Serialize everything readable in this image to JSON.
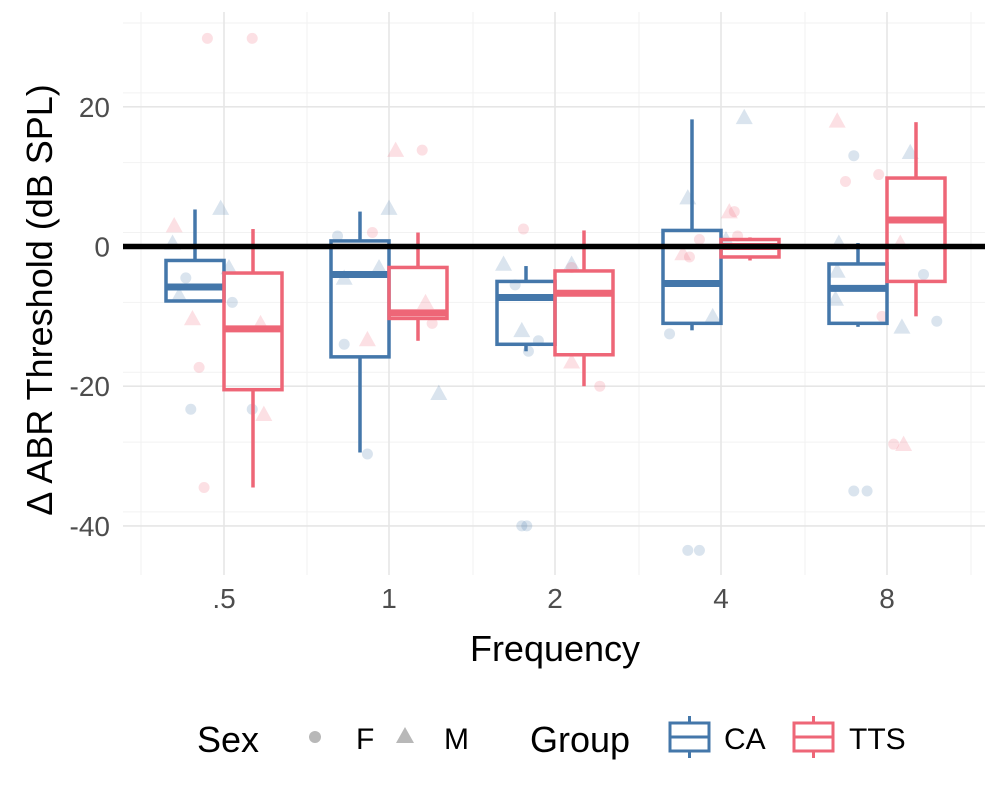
{
  "chart_data": {
    "type": "boxplot",
    "xlabel": "Frequency",
    "ylabel": "Δ ABR Threshold (dB SPL)",
    "categories": [
      ".5",
      "1",
      "2",
      "4",
      "8"
    ],
    "ylim": [
      -48,
      33
    ],
    "yticks": [
      -40,
      -20,
      0,
      20
    ],
    "ytick_labels": [
      "-40",
      "-20",
      "0",
      "20"
    ],
    "grid": true,
    "reference_line": 0,
    "legend": {
      "placement": "bottom",
      "sex_title": "Sex",
      "sex_items": [
        {
          "label": "F",
          "shape": "circle"
        },
        {
          "label": "M",
          "shape": "triangle"
        }
      ],
      "group_title": "Group",
      "group_items": [
        {
          "label": "CA",
          "color": "#4477AA"
        },
        {
          "label": "TTS",
          "color": "#EE6677"
        }
      ]
    },
    "colors": {
      "CA": "#4477AA",
      "TTS": "#EE6677"
    },
    "series": [
      {
        "name": "CA",
        "color": "#4477AA",
        "boxes": [
          {
            "category": ".5",
            "whisker_low": -8,
            "q1": -7.8,
            "median": -5.8,
            "q3": -2,
            "whisker_high": 5.3
          },
          {
            "category": "1",
            "whisker_low": -29.5,
            "q1": -15.8,
            "median": -4,
            "q3": 0.8,
            "whisker_high": 5
          },
          {
            "category": "2",
            "whisker_low": -15,
            "q1": -14,
            "median": -7.3,
            "q3": -5,
            "whisker_high": -2.8
          },
          {
            "category": "4",
            "whisker_low": -12,
            "q1": -11,
            "median": -5.3,
            "q3": 2.3,
            "whisker_high": 18.2
          },
          {
            "category": "8",
            "whisker_low": -11.5,
            "q1": -11,
            "median": -6,
            "q3": -2.5,
            "whisker_high": 0.5
          }
        ],
        "points": [
          {
            "category": ".5",
            "x_offset": -0.31,
            "y": 0.5,
            "sex": "M"
          },
          {
            "category": ".5",
            "x_offset": -0.23,
            "y": -4.5,
            "sex": "F"
          },
          {
            "category": ".5",
            "x_offset": -0.27,
            "y": -7,
            "sex": "M"
          },
          {
            "category": ".5",
            "x_offset": -0.2,
            "y": -23.3,
            "sex": "F"
          },
          {
            "category": ".5",
            "x_offset": -0.02,
            "y": 5.5,
            "sex": "M"
          },
          {
            "category": ".5",
            "x_offset": 0.03,
            "y": -3,
            "sex": "M"
          },
          {
            "category": ".5",
            "x_offset": 0.05,
            "y": -8,
            "sex": "F"
          },
          {
            "category": ".5",
            "x_offset": 0.17,
            "y": -23.3,
            "sex": "F"
          },
          {
            "category": "1",
            "x_offset": -0.31,
            "y": 1.5,
            "sex": "F"
          },
          {
            "category": "1",
            "x_offset": -0.27,
            "y": -4.5,
            "sex": "M"
          },
          {
            "category": "1",
            "x_offset": -0.27,
            "y": -14,
            "sex": "F"
          },
          {
            "category": "1",
            "x_offset": -0.13,
            "y": -29.7,
            "sex": "F"
          },
          {
            "category": "1",
            "x_offset": -0.06,
            "y": -3,
            "sex": "M"
          },
          {
            "category": "1",
            "x_offset": 0.0,
            "y": 5.5,
            "sex": "M"
          },
          {
            "category": "1",
            "x_offset": 0.3,
            "y": -21,
            "sex": "M"
          },
          {
            "category": "2",
            "x_offset": -0.31,
            "y": -2.5,
            "sex": "M"
          },
          {
            "category": "2",
            "x_offset": -0.24,
            "y": -5.5,
            "sex": "F"
          },
          {
            "category": "2",
            "x_offset": -0.2,
            "y": -12,
            "sex": "M"
          },
          {
            "category": "2",
            "x_offset": -0.16,
            "y": -15,
            "sex": "F"
          },
          {
            "category": "2",
            "x_offset": -0.2,
            "y": -40,
            "sex": "F"
          },
          {
            "category": "2",
            "x_offset": -0.17,
            "y": -40,
            "sex": "F"
          },
          {
            "category": "2",
            "x_offset": -0.1,
            "y": -13.5,
            "sex": "F"
          },
          {
            "category": "2",
            "x_offset": 0.1,
            "y": -2.5,
            "sex": "M"
          },
          {
            "category": "4",
            "x_offset": -0.31,
            "y": -12.5,
            "sex": "F"
          },
          {
            "category": "4",
            "x_offset": -0.2,
            "y": 7,
            "sex": "M"
          },
          {
            "category": "4",
            "x_offset": -0.2,
            "y": -43.5,
            "sex": "F"
          },
          {
            "category": "4",
            "x_offset": -0.13,
            "y": -43.5,
            "sex": "F"
          },
          {
            "category": "4",
            "x_offset": -0.05,
            "y": -10,
            "sex": "M"
          },
          {
            "category": "4",
            "x_offset": 0.03,
            "y": 1,
            "sex": "M"
          },
          {
            "category": "4",
            "x_offset": 0.14,
            "y": 18.5,
            "sex": "M"
          },
          {
            "category": "8",
            "x_offset": -0.3,
            "y": -3.5,
            "sex": "M"
          },
          {
            "category": "8",
            "x_offset": -0.31,
            "y": -7.5,
            "sex": "M"
          },
          {
            "category": "8",
            "x_offset": -0.2,
            "y": 13,
            "sex": "F"
          },
          {
            "category": "8",
            "x_offset": -0.2,
            "y": -35,
            "sex": "F"
          },
          {
            "category": "8",
            "x_offset": -0.12,
            "y": -35,
            "sex": "F"
          },
          {
            "category": "8",
            "x_offset": -0.29,
            "y": 0.5,
            "sex": "M"
          },
          {
            "category": "8",
            "x_offset": 0.09,
            "y": -11.5,
            "sex": "M"
          },
          {
            "category": "8",
            "x_offset": 0.14,
            "y": 13.5,
            "sex": "M"
          },
          {
            "category": "8",
            "x_offset": 0.22,
            "y": -4,
            "sex": "F"
          },
          {
            "category": "8",
            "x_offset": 0.3,
            "y": -10.7,
            "sex": "F"
          }
        ]
      },
      {
        "name": "TTS",
        "color": "#EE6677",
        "boxes": [
          {
            "category": ".5",
            "whisker_low": -34.5,
            "q1": -20.5,
            "median": -11.8,
            "q3": -3.8,
            "whisker_high": 2.5
          },
          {
            "category": "1",
            "whisker_low": -13.5,
            "q1": -10.3,
            "median": -9.5,
            "q3": -3,
            "whisker_high": 2
          },
          {
            "category": "2",
            "whisker_low": -20,
            "q1": -15.5,
            "median": -6.7,
            "q3": -3.5,
            "whisker_high": 2.3
          },
          {
            "category": "4",
            "whisker_low": -2,
            "q1": -1.5,
            "median": 0,
            "q3": 1,
            "whisker_high": 1.3
          },
          {
            "category": "8",
            "whisker_low": -10,
            "q1": -5,
            "median": 3.8,
            "q3": 9.8,
            "whisker_high": 17.8
          }
        ],
        "points": [
          {
            "category": ".5",
            "x_offset": -0.3,
            "y": 3,
            "sex": "M"
          },
          {
            "category": ".5",
            "x_offset": -0.19,
            "y": -10.3,
            "sex": "M"
          },
          {
            "category": ".5",
            "x_offset": -0.15,
            "y": -17.3,
            "sex": "F"
          },
          {
            "category": ".5",
            "x_offset": -0.12,
            "y": -34.5,
            "sex": "F"
          },
          {
            "category": ".5",
            "x_offset": -0.1,
            "y": 29.8,
            "sex": "F"
          },
          {
            "category": ".5",
            "x_offset": 0.17,
            "y": 29.8,
            "sex": "F"
          },
          {
            "category": ".5",
            "x_offset": 0.22,
            "y": -11,
            "sex": "M"
          },
          {
            "category": ".5",
            "x_offset": 0.24,
            "y": -24,
            "sex": "M"
          },
          {
            "category": "1",
            "x_offset": -0.13,
            "y": -13.3,
            "sex": "M"
          },
          {
            "category": "1",
            "x_offset": -0.1,
            "y": 2,
            "sex": "F"
          },
          {
            "category": "1",
            "x_offset": 0.04,
            "y": 13.8,
            "sex": "M"
          },
          {
            "category": "1",
            "x_offset": 0.22,
            "y": -8,
            "sex": "M"
          },
          {
            "category": "1",
            "x_offset": 0.2,
            "y": 13.8,
            "sex": "F"
          },
          {
            "category": "1",
            "x_offset": 0.26,
            "y": -11,
            "sex": "F"
          },
          {
            "category": "2",
            "x_offset": -0.19,
            "y": 2.5,
            "sex": "F"
          },
          {
            "category": "2",
            "x_offset": 0.1,
            "y": -16.5,
            "sex": "M"
          },
          {
            "category": "2",
            "x_offset": 0.1,
            "y": -3,
            "sex": "F"
          },
          {
            "category": "2",
            "x_offset": 0.27,
            "y": -20,
            "sex": "F"
          },
          {
            "category": "4",
            "x_offset": -0.23,
            "y": -1,
            "sex": "M"
          },
          {
            "category": "4",
            "x_offset": -0.19,
            "y": -1.5,
            "sex": "F"
          },
          {
            "category": "4",
            "x_offset": -0.13,
            "y": 1,
            "sex": "F"
          },
          {
            "category": "4",
            "x_offset": 0.05,
            "y": 5,
            "sex": "M"
          },
          {
            "category": "4",
            "x_offset": 0.08,
            "y": 5,
            "sex": "F"
          },
          {
            "category": "4",
            "x_offset": 0.1,
            "y": 1.5,
            "sex": "F"
          },
          {
            "category": "8",
            "x_offset": -0.3,
            "y": 18,
            "sex": "M"
          },
          {
            "category": "8",
            "x_offset": -0.25,
            "y": 9.3,
            "sex": "F"
          },
          {
            "category": "8",
            "x_offset": -0.05,
            "y": 10.3,
            "sex": "F"
          },
          {
            "category": "8",
            "x_offset": -0.03,
            "y": -10,
            "sex": "F"
          },
          {
            "category": "8",
            "x_offset": 0.04,
            "y": -28.3,
            "sex": "F"
          },
          {
            "category": "8",
            "x_offset": 0.1,
            "y": -28.3,
            "sex": "M"
          },
          {
            "category": "8",
            "x_offset": 0.08,
            "y": 0.5,
            "sex": "M"
          }
        ]
      }
    ]
  }
}
